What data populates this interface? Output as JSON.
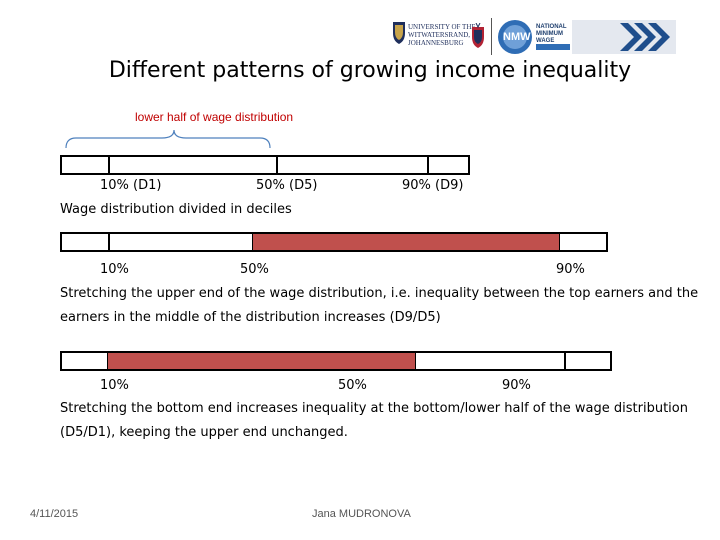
{
  "logos": {
    "wits_line1": "UNIVERSITY OF THE",
    "wits_line2": "WITWATERSRAND,",
    "wits_line3": "JOHANNESBURG",
    "nmw_line1": "NATIONAL",
    "nmw_line2": "MINIMUM",
    "nmw_line3": "WAGE",
    "nmw_mark": "NMW",
    "brand_blue": "#2f6db5"
  },
  "title": "Different patterns of growing income inequality",
  "bracket_label": "lower half of wage distribution",
  "colors": {
    "fill": "#c0504d",
    "bracket": "#4f81bd",
    "bracket_label": "#c00000"
  },
  "diagram1": {
    "labels": [
      "10% (D1)",
      "50% (D5)",
      "90% (D9)"
    ],
    "caption": "Wage distribution divided in deciles"
  },
  "diagram2": {
    "labels": [
      "10%",
      "50%",
      "90%"
    ],
    "caption_line1": "Stretching the upper end of the wage distribution, i.e. inequality between the top earners and the",
    "caption_line2": "earners in the middle of the distribution increases (D9/D5)"
  },
  "diagram3": {
    "labels": [
      "10%",
      "50%",
      "90%"
    ],
    "caption_line1": "Stretching the bottom end increases inequality at the bottom/lower half of the wage distribution",
    "caption_line2": "(D5/D1), keeping the upper end unchanged."
  },
  "footer": {
    "date": "4/11/2015",
    "author": "Jana MUDRONOVA"
  }
}
